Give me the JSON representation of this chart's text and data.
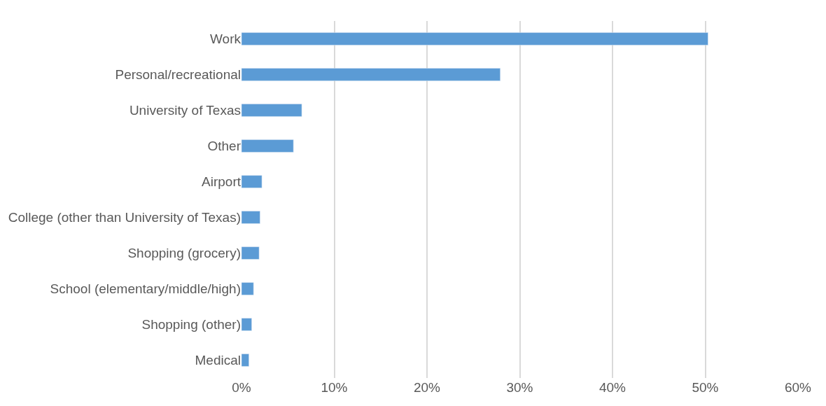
{
  "chart_data": {
    "type": "bar",
    "orientation": "horizontal",
    "categories": [
      "Work",
      "Personal/recreational",
      "University of Texas",
      "Other",
      "Airport",
      "College (other than University of Texas)",
      "Shopping (grocery)",
      "School (elementary/middle/high)",
      "Shopping (other)",
      "Medical"
    ],
    "values": [
      50.3,
      27.9,
      6.5,
      5.6,
      2.2,
      2.0,
      1.9,
      1.3,
      1.1,
      0.8
    ],
    "color": "#5b9bd5",
    "xlim": [
      0,
      60
    ],
    "xticks": [
      {
        "value": 0,
        "label": "0%"
      },
      {
        "value": 10,
        "label": "10%"
      },
      {
        "value": 20,
        "label": "20%"
      },
      {
        "value": 30,
        "label": "30%"
      },
      {
        "value": 40,
        "label": "40%"
      },
      {
        "value": 50,
        "label": "50%"
      },
      {
        "value": 60,
        "label": "60%"
      }
    ],
    "grid": "x",
    "legend": false
  }
}
